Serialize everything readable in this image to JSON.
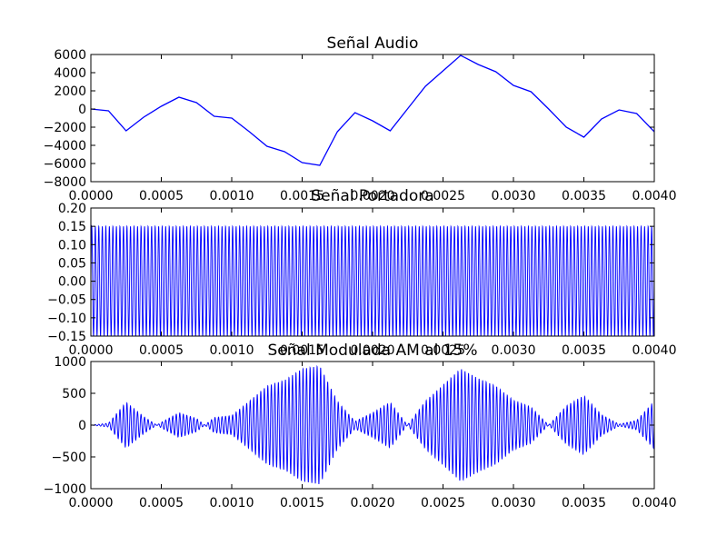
{
  "figure": {
    "background": "#ffffff"
  },
  "chart_data": [
    {
      "type": "line",
      "title": "Señal Audio",
      "xlabel": "",
      "ylabel": "",
      "xlim": [
        0.0,
        0.004
      ],
      "ylim": [
        -8000,
        6000
      ],
      "grid": false,
      "color": "#0000ff",
      "x_ticks": [
        "0.0000",
        "0.0005",
        "0.0010",
        "0.0015",
        "0.0020",
        "0.0025",
        "0.0030",
        "0.0035",
        "0.0040"
      ],
      "y_ticks": [
        "−8000",
        "−6000",
        "−4000",
        "−2000",
        "0",
        "2000",
        "4000",
        "6000"
      ],
      "x": [
        0.0,
        0.000125,
        0.00025,
        0.000375,
        0.0005,
        0.000625,
        0.00075,
        0.000875,
        0.001,
        0.001125,
        0.00125,
        0.001375,
        0.0015,
        0.001625,
        0.00175,
        0.001875,
        0.002,
        0.002125,
        0.00225,
        0.002375,
        0.0025,
        0.002625,
        0.00275,
        0.002875,
        0.003,
        0.003125,
        0.00325,
        0.003375,
        0.0035,
        0.003625,
        0.00375,
        0.003875,
        0.004
      ],
      "y": [
        0,
        -200,
        -2400,
        -900,
        300,
        1300,
        700,
        -800,
        -1000,
        -2500,
        -4100,
        -4700,
        -5900,
        -6200,
        -2500,
        -400,
        -1300,
        -2400,
        50,
        2500,
        4200,
        5900,
        4900,
        4100,
        2600,
        1900,
        0,
        -2000,
        -3100,
        -1100,
        -100,
        -500,
        -2500
      ]
    },
    {
      "type": "line",
      "title": "Señal Portadora",
      "xlabel": "",
      "ylabel": "",
      "xlim": [
        0.0,
        0.004
      ],
      "ylim": [
        -0.15,
        0.2
      ],
      "grid": false,
      "color": "#0000ff",
      "x_ticks": [
        "0.0000",
        "0.0005",
        "0.0010",
        "0.0015",
        "0.0020",
        "0.0025",
        "0.0030",
        "0.0035",
        "0.0040"
      ],
      "y_ticks": [
        "−0.15",
        "−0.10",
        "−0.05",
        "0.00",
        "0.05",
        "0.10",
        "0.15",
        "0.20"
      ],
      "amplitude": 0.15,
      "carrier_frequency_hz": 40000
    },
    {
      "type": "line",
      "title": "Señal Modulada AM al 15%",
      "xlabel": "",
      "ylabel": "",
      "xlim": [
        0.0,
        0.004
      ],
      "ylim": [
        -1000,
        1000
      ],
      "grid": false,
      "color": "#0000ff",
      "x_ticks": [
        "0.0000",
        "0.0005",
        "0.0010",
        "0.0015",
        "0.0020",
        "0.0025",
        "0.0030",
        "0.0035",
        "0.0040"
      ],
      "y_ticks": [
        "−1000",
        "−500",
        "0",
        "500",
        "1000"
      ],
      "carrier_frequency_hz": 40000,
      "envelope": "abs(0.15 * audio)"
    }
  ]
}
